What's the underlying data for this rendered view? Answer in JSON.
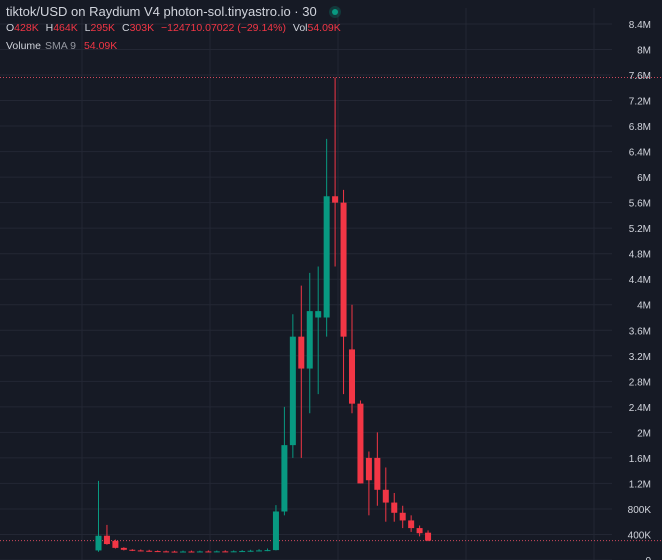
{
  "header": {
    "title": "tiktok/USD on Raydium V4 photon-sol.tinyastro.io · 30",
    "live_indicator": "live-dot",
    "ohlc": {
      "o_key": "O",
      "o_val": "428K",
      "h_key": "H",
      "h_val": "464K",
      "l_key": "L",
      "l_val": "295K",
      "c_key": "C",
      "c_val": "303K",
      "change": "−124710.07022 (−29.14%)",
      "vol_key": "Vol",
      "vol_val": "54.09K"
    },
    "volume": {
      "label": "Volume",
      "sma": "SMA 9",
      "value": "54.09K"
    }
  },
  "colors": {
    "background": "#161a25",
    "grid": "#232734",
    "up": "#089981",
    "down": "#f23645",
    "axis_text": "#d1d4dc",
    "price_line": "#d0485c"
  },
  "chart_data": {
    "type": "candlestick",
    "y_ticks": [
      {
        "value": 0,
        "label": "0"
      },
      {
        "value": 400000,
        "label": "400K"
      },
      {
        "value": 800000,
        "label": "800K"
      },
      {
        "value": 1200000,
        "label": "1.2M"
      },
      {
        "value": 1600000,
        "label": "1.6M"
      },
      {
        "value": 2000000,
        "label": "2M"
      },
      {
        "value": 2400000,
        "label": "2.4M"
      },
      {
        "value": 2800000,
        "label": "2.8M"
      },
      {
        "value": 3200000,
        "label": "3.2M"
      },
      {
        "value": 3600000,
        "label": "3.6M"
      },
      {
        "value": 4000000,
        "label": "4M"
      },
      {
        "value": 4400000,
        "label": "4.4M"
      },
      {
        "value": 4800000,
        "label": "4.8M"
      },
      {
        "value": 5200000,
        "label": "5.2M"
      },
      {
        "value": 5600000,
        "label": "5.6M"
      },
      {
        "value": 6000000,
        "label": "6M"
      },
      {
        "value": 6400000,
        "label": "6.4M"
      },
      {
        "value": 6800000,
        "label": "6.8M"
      },
      {
        "value": 7200000,
        "label": "7.2M"
      },
      {
        "value": 7600000,
        "label": "7.6M"
      },
      {
        "value": 8000000,
        "label": "8M"
      },
      {
        "value": 8400000,
        "label": "8.4M"
      }
    ],
    "ylim": [
      0,
      8650000
    ],
    "price_lines": [
      {
        "value": 7560000,
        "style": "dotted"
      },
      {
        "value": 303000,
        "style": "dotted"
      }
    ],
    "candles": [
      {
        "o": 150000,
        "h": 1240000,
        "l": 130000,
        "c": 380000
      },
      {
        "o": 380000,
        "h": 550000,
        "l": 240000,
        "c": 250000
      },
      {
        "o": 300000,
        "h": 320000,
        "l": 180000,
        "c": 190000
      },
      {
        "o": 190000,
        "h": 200000,
        "l": 150000,
        "c": 160000
      },
      {
        "o": 160000,
        "h": 170000,
        "l": 140000,
        "c": 150000
      },
      {
        "o": 150000,
        "h": 165000,
        "l": 135000,
        "c": 145000
      },
      {
        "o": 145000,
        "h": 160000,
        "l": 130000,
        "c": 140000
      },
      {
        "o": 140000,
        "h": 150000,
        "l": 128000,
        "c": 135000
      },
      {
        "o": 135000,
        "h": 148000,
        "l": 127000,
        "c": 132000
      },
      {
        "o": 132000,
        "h": 145000,
        "l": 125000,
        "c": 130000
      },
      {
        "o": 130000,
        "h": 146000,
        "l": 124000,
        "c": 133000
      },
      {
        "o": 133000,
        "h": 148000,
        "l": 125000,
        "c": 131000
      },
      {
        "o": 131000,
        "h": 146000,
        "l": 124000,
        "c": 134000
      },
      {
        "o": 134000,
        "h": 150000,
        "l": 126000,
        "c": 132000
      },
      {
        "o": 132000,
        "h": 148000,
        "l": 125000,
        "c": 135000
      },
      {
        "o": 135000,
        "h": 152000,
        "l": 127000,
        "c": 133000
      },
      {
        "o": 133000,
        "h": 150000,
        "l": 126000,
        "c": 136000
      },
      {
        "o": 136000,
        "h": 155000,
        "l": 128000,
        "c": 140000
      },
      {
        "o": 140000,
        "h": 160000,
        "l": 130000,
        "c": 145000
      },
      {
        "o": 145000,
        "h": 170000,
        "l": 135000,
        "c": 150000
      },
      {
        "o": 150000,
        "h": 180000,
        "l": 140000,
        "c": 155000
      },
      {
        "o": 155000,
        "h": 860000,
        "l": 150000,
        "c": 760000
      },
      {
        "o": 760000,
        "h": 2400000,
        "l": 700000,
        "c": 1800000
      },
      {
        "o": 1800000,
        "h": 3850000,
        "l": 1600000,
        "c": 3500000
      },
      {
        "o": 3500000,
        "h": 4300000,
        "l": 1600000,
        "c": 3000000
      },
      {
        "o": 3000000,
        "h": 4500000,
        "l": 2300000,
        "c": 3900000
      },
      {
        "o": 3800000,
        "h": 4600000,
        "l": 2600000,
        "c": 3900000
      },
      {
        "o": 3800000,
        "h": 6600000,
        "l": 3500000,
        "c": 5700000
      },
      {
        "o": 5700000,
        "h": 7560000,
        "l": 4600000,
        "c": 5600000
      },
      {
        "o": 5600000,
        "h": 5800000,
        "l": 2600000,
        "c": 3500000
      },
      {
        "o": 3300000,
        "h": 4000000,
        "l": 2300000,
        "c": 2450000
      },
      {
        "o": 2450000,
        "h": 2500000,
        "l": 1200000,
        "c": 1200000
      },
      {
        "o": 1600000,
        "h": 1700000,
        "l": 700000,
        "c": 1250000
      },
      {
        "o": 1600000,
        "h": 2000000,
        "l": 850000,
        "c": 1100000
      },
      {
        "o": 1100000,
        "h": 1450000,
        "l": 600000,
        "c": 900000
      },
      {
        "o": 900000,
        "h": 1050000,
        "l": 600000,
        "c": 740000
      },
      {
        "o": 740000,
        "h": 850000,
        "l": 500000,
        "c": 620000
      },
      {
        "o": 620000,
        "h": 700000,
        "l": 440000,
        "c": 500000
      },
      {
        "o": 500000,
        "h": 540000,
        "l": 370000,
        "c": 420000
      },
      {
        "o": 428000,
        "h": 464000,
        "l": 295000,
        "c": 303000
      }
    ]
  }
}
